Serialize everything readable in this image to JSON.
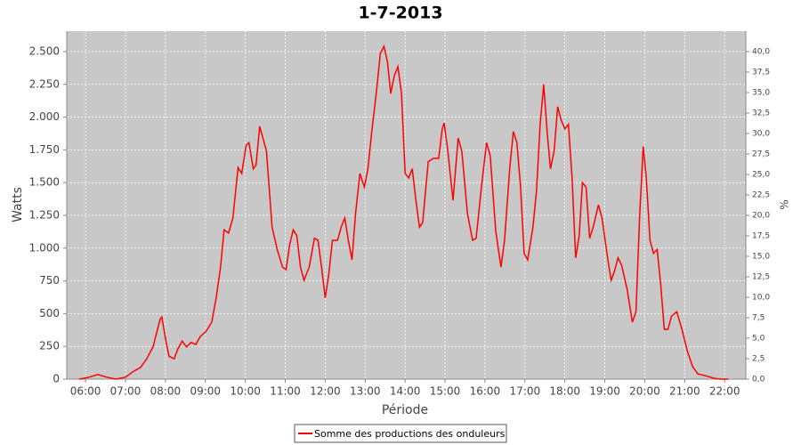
{
  "chart_data": {
    "type": "line",
    "title": "1-7-2013",
    "xlabel": "Période",
    "ylabel": "Watts",
    "y2label": "%",
    "x": [
      5.84,
      6.09,
      6.31,
      6.53,
      6.76,
      7.0,
      7.2,
      7.38,
      7.53,
      7.69,
      7.87,
      7.91,
      8.0,
      8.09,
      8.22,
      8.31,
      8.42,
      8.53,
      8.64,
      8.76,
      8.87,
      9.02,
      9.16,
      9.27,
      9.38,
      9.47,
      9.58,
      9.69,
      9.82,
      9.91,
      10.02,
      10.09,
      10.2,
      10.27,
      10.36,
      10.44,
      10.53,
      10.67,
      10.8,
      10.93,
      11.02,
      11.11,
      11.2,
      11.29,
      11.38,
      11.47,
      11.6,
      11.73,
      11.82,
      11.91,
      12.0,
      12.09,
      12.18,
      12.31,
      12.4,
      12.49,
      12.58,
      12.67,
      12.76,
      12.87,
      12.98,
      13.07,
      13.16,
      13.29,
      13.38,
      13.47,
      13.56,
      13.64,
      13.73,
      13.82,
      13.91,
      14.0,
      14.09,
      14.18,
      14.27,
      14.36,
      14.44,
      14.58,
      14.71,
      14.84,
      14.93,
      14.98,
      15.07,
      15.2,
      15.33,
      15.42,
      15.56,
      15.69,
      15.78,
      15.91,
      16.04,
      16.13,
      16.27,
      16.4,
      16.49,
      16.62,
      16.71,
      16.8,
      16.89,
      16.98,
      17.07,
      17.2,
      17.29,
      17.38,
      17.47,
      17.56,
      17.64,
      17.73,
      17.82,
      17.91,
      18.0,
      18.09,
      18.18,
      18.27,
      18.36,
      18.44,
      18.53,
      18.62,
      18.71,
      18.84,
      18.93,
      19.07,
      19.16,
      19.24,
      19.33,
      19.42,
      19.56,
      19.69,
      19.78,
      19.87,
      19.96,
      20.04,
      20.13,
      20.22,
      20.31,
      20.4,
      20.49,
      20.58,
      20.67,
      20.8,
      20.93,
      21.07,
      21.2,
      21.33,
      21.53,
      21.76,
      21.91,
      22.09
    ],
    "series": [
      {
        "name": "Somme des productions des onduleurs",
        "color": "#ff0000",
        "values": [
          0,
          15,
          35,
          15,
          0,
          15,
          60,
          90,
          155,
          245,
          460,
          475,
          310,
          175,
          155,
          230,
          290,
          245,
          280,
          265,
          325,
          365,
          435,
          620,
          855,
          1140,
          1115,
          1230,
          1615,
          1570,
          1785,
          1805,
          1605,
          1635,
          1930,
          1840,
          1740,
          1160,
          990,
          855,
          835,
          1025,
          1140,
          1095,
          855,
          755,
          855,
          1075,
          1060,
          855,
          620,
          800,
          1060,
          1060,
          1160,
          1230,
          1060,
          910,
          1265,
          1570,
          1465,
          1605,
          1875,
          2215,
          2485,
          2540,
          2420,
          2180,
          2315,
          2385,
          2180,
          1570,
          1535,
          1605,
          1365,
          1160,
          1195,
          1660,
          1685,
          1685,
          1910,
          1955,
          1740,
          1365,
          1840,
          1740,
          1265,
          1060,
          1075,
          1465,
          1805,
          1705,
          1130,
          855,
          1060,
          1605,
          1890,
          1805,
          1465,
          960,
          910,
          1160,
          1435,
          1945,
          2250,
          1875,
          1605,
          1740,
          2080,
          1975,
          1910,
          1945,
          1535,
          925,
          1095,
          1500,
          1465,
          1075,
          1160,
          1330,
          1230,
          925,
          755,
          820,
          925,
          870,
          685,
          435,
          515,
          1230,
          1775,
          1535,
          1060,
          960,
          990,
          720,
          380,
          380,
          480,
          515,
          380,
          210,
          95,
          40,
          25,
          5,
          0,
          0
        ]
      }
    ],
    "xlim": [
      5.53,
      22.53
    ],
    "xticks": [
      {
        "value": 6,
        "label": "06:00"
      },
      {
        "value": 7,
        "label": "07:00"
      },
      {
        "value": 8,
        "label": "08:00"
      },
      {
        "value": 9,
        "label": "09:00"
      },
      {
        "value": 10,
        "label": "10:00"
      },
      {
        "value": 11,
        "label": "11:00"
      },
      {
        "value": 12,
        "label": "12:00"
      },
      {
        "value": 13,
        "label": "13:00"
      },
      {
        "value": 14,
        "label": "14:00"
      },
      {
        "value": 15,
        "label": "15:00"
      },
      {
        "value": 16,
        "label": "16:00"
      },
      {
        "value": 17,
        "label": "17:00"
      },
      {
        "value": 18,
        "label": "18:00"
      },
      {
        "value": 19,
        "label": "19:00"
      },
      {
        "value": 20,
        "label": "20:00"
      },
      {
        "value": 21,
        "label": "21:00"
      },
      {
        "value": 22,
        "label": "22:00"
      }
    ],
    "ylim": [
      0,
      2656
    ],
    "yticks": [
      0,
      250,
      500,
      750,
      {
        "value": 1000,
        "label": "1.000"
      },
      {
        "value": 1250,
        "label": "1.250"
      },
      {
        "value": 1500,
        "label": "1.500"
      },
      {
        "value": 1750,
        "label": "1.750"
      },
      {
        "value": 2000,
        "label": "2.000"
      },
      {
        "value": 2250,
        "label": "2.250"
      },
      {
        "value": 2500,
        "label": "2.500"
      }
    ],
    "y2lim": [
      0,
      42.5
    ],
    "y2ticks": [
      {
        "value": 0,
        "label": "0,0"
      },
      {
        "value": 2.5,
        "label": "2,5"
      },
      {
        "value": 5,
        "label": "5,0"
      },
      {
        "value": 7.5,
        "label": "7,5"
      },
      {
        "value": 10,
        "label": "10,0"
      },
      {
        "value": 12.5,
        "label": "12,5"
      },
      {
        "value": 15,
        "label": "15,0"
      },
      {
        "value": 17.5,
        "label": "17,5"
      },
      {
        "value": 20,
        "label": "20,0"
      },
      {
        "value": 22.5,
        "label": "22,5"
      },
      {
        "value": 25,
        "label": "25,0"
      },
      {
        "value": 27.5,
        "label": "27,5"
      },
      {
        "value": 30,
        "label": "30,0"
      },
      {
        "value": 32.5,
        "label": "32,5"
      },
      {
        "value": 35,
        "label": "35,0"
      },
      {
        "value": 37.5,
        "label": "37,5"
      },
      {
        "value": 40,
        "label": "40,0"
      }
    ],
    "grid": true,
    "legend": "bottom"
  }
}
